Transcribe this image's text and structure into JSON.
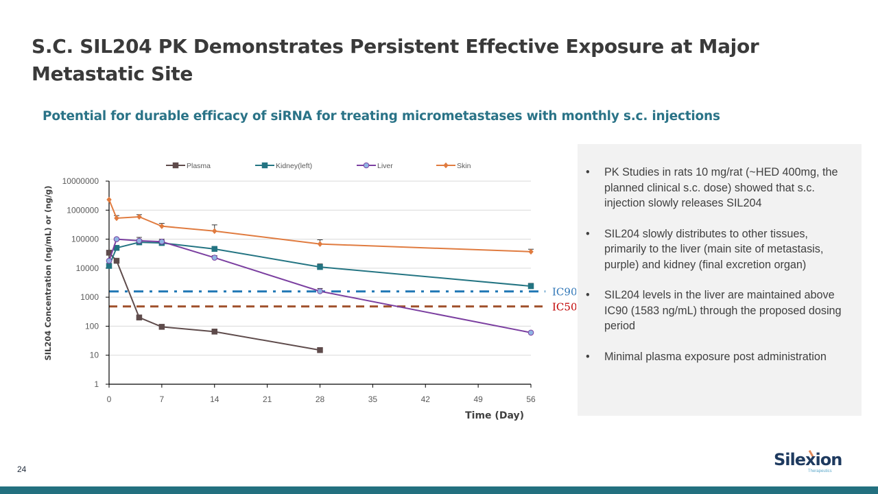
{
  "slide": {
    "title": "S.C. SIL204 PK Demonstrates Persistent Effective Exposure at Major Metastatic Site",
    "subtitle": "Potential for durable efficacy of siRNA for treating micrometastases with monthly s.c. injections",
    "page_number": "24",
    "logo": {
      "name": "Silexion",
      "tagline": "Therapeutics"
    },
    "colors": {
      "title": "#3a3a3a",
      "subtitle": "#2a7387",
      "footer_bar": "#23707f",
      "panel_bg": "#f2f2f2"
    }
  },
  "bullets": [
    {
      "marker": "•",
      "text": "PK Studies in rats 10 mg/rat (~HED 400mg, the planned clinical s.c. dose) showed that s.c. injection slowly releases SIL204"
    },
    {
      "marker": "•",
      "text": "SIL204 slowly distributes to other tissues, primarily to the liver (main site of metastasis, purple) and kidney (final excretion organ)"
    },
    {
      "marker": "•",
      "text": "SIL204 levels in the liver are maintained above IC90 (1583 ng/mL) through the proposed dosing period"
    },
    {
      "marker": "•",
      "text": "Minimal plasma exposure post administration"
    }
  ],
  "chart_data": {
    "type": "line",
    "title": "",
    "xlabel": "Time (Day)",
    "ylabel": "SIL204 Concentration (ng/mL) or (ng/g)",
    "xlim": [
      0,
      56
    ],
    "xticks": [
      0,
      7,
      14,
      21,
      28,
      35,
      42,
      49,
      56
    ],
    "yscale": "log",
    "ylim": [
      1,
      10000000
    ],
    "yticks": [
      1,
      10,
      100,
      1000,
      10000,
      100000,
      1000000,
      10000000
    ],
    "ytick_labels": [
      "1",
      "10",
      "100",
      "1000",
      "10000",
      "100000",
      "1000000",
      "10000000"
    ],
    "grid": "horizontal",
    "legend_position": "top",
    "series": [
      {
        "name": "Plasma",
        "color": "#5e4b4b",
        "marker": "square",
        "x": [
          0,
          1,
          4,
          7,
          14,
          28
        ],
        "values": [
          34000,
          18000,
          200,
          95,
          65,
          15
        ],
        "error_upper": [
          null,
          null,
          null,
          null,
          80,
          null
        ]
      },
      {
        "name": "Kidney(left)",
        "color": "#237482",
        "marker": "square",
        "x": [
          0,
          1,
          4,
          7,
          14,
          28,
          56
        ],
        "values": [
          12000,
          50000,
          78000,
          74000,
          46000,
          11000,
          2400
        ],
        "error_upper": [
          null,
          null,
          null,
          null,
          null,
          14000,
          3000
        ]
      },
      {
        "name": "Liver",
        "color": "#7b3fa0",
        "marker": "circle",
        "marker_fill": "#8fb4e3",
        "x": [
          0,
          1,
          4,
          7,
          14,
          28,
          56
        ],
        "values": [
          18000,
          100000,
          88000,
          82000,
          23000,
          1600,
          60
        ],
        "error_upper": [
          null,
          null,
          115000,
          100000,
          27000,
          2000,
          null
        ]
      },
      {
        "name": "Skin",
        "color": "#e07b3f",
        "marker": "diamond",
        "x": [
          0,
          1,
          4,
          7,
          14,
          28,
          56
        ],
        "values": [
          2300000,
          530000,
          590000,
          280000,
          190000,
          68000,
          37000
        ],
        "error_upper": [
          null,
          650000,
          700000,
          350000,
          310000,
          95000,
          45000
        ]
      }
    ],
    "reference_lines": [
      {
        "name": "IC90",
        "label": "IC90",
        "value": 1583,
        "color": "#1f77b4",
        "label_color": "#2e75b6",
        "style": "dash-dot"
      },
      {
        "name": "IC50",
        "label": "IC50",
        "value": 480,
        "color": "#a0522d",
        "label_color": "#c00000",
        "style": "dashed"
      }
    ]
  }
}
